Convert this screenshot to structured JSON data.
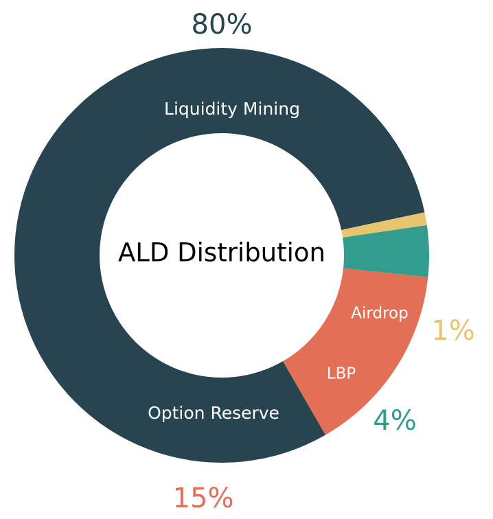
{
  "chart_data": {
    "type": "pie",
    "title": "ALD Distribution",
    "categories": [
      "Liquidity Mining",
      "Option Reserve",
      "LBP",
      "Airdrop"
    ],
    "values": [
      80,
      15,
      4,
      1
    ],
    "value_labels": [
      "80%",
      "15%",
      "4%",
      "1%"
    ],
    "colors": [
      "#284450",
      "#E46F57",
      "#329C8F",
      "#E7C56F"
    ]
  }
}
